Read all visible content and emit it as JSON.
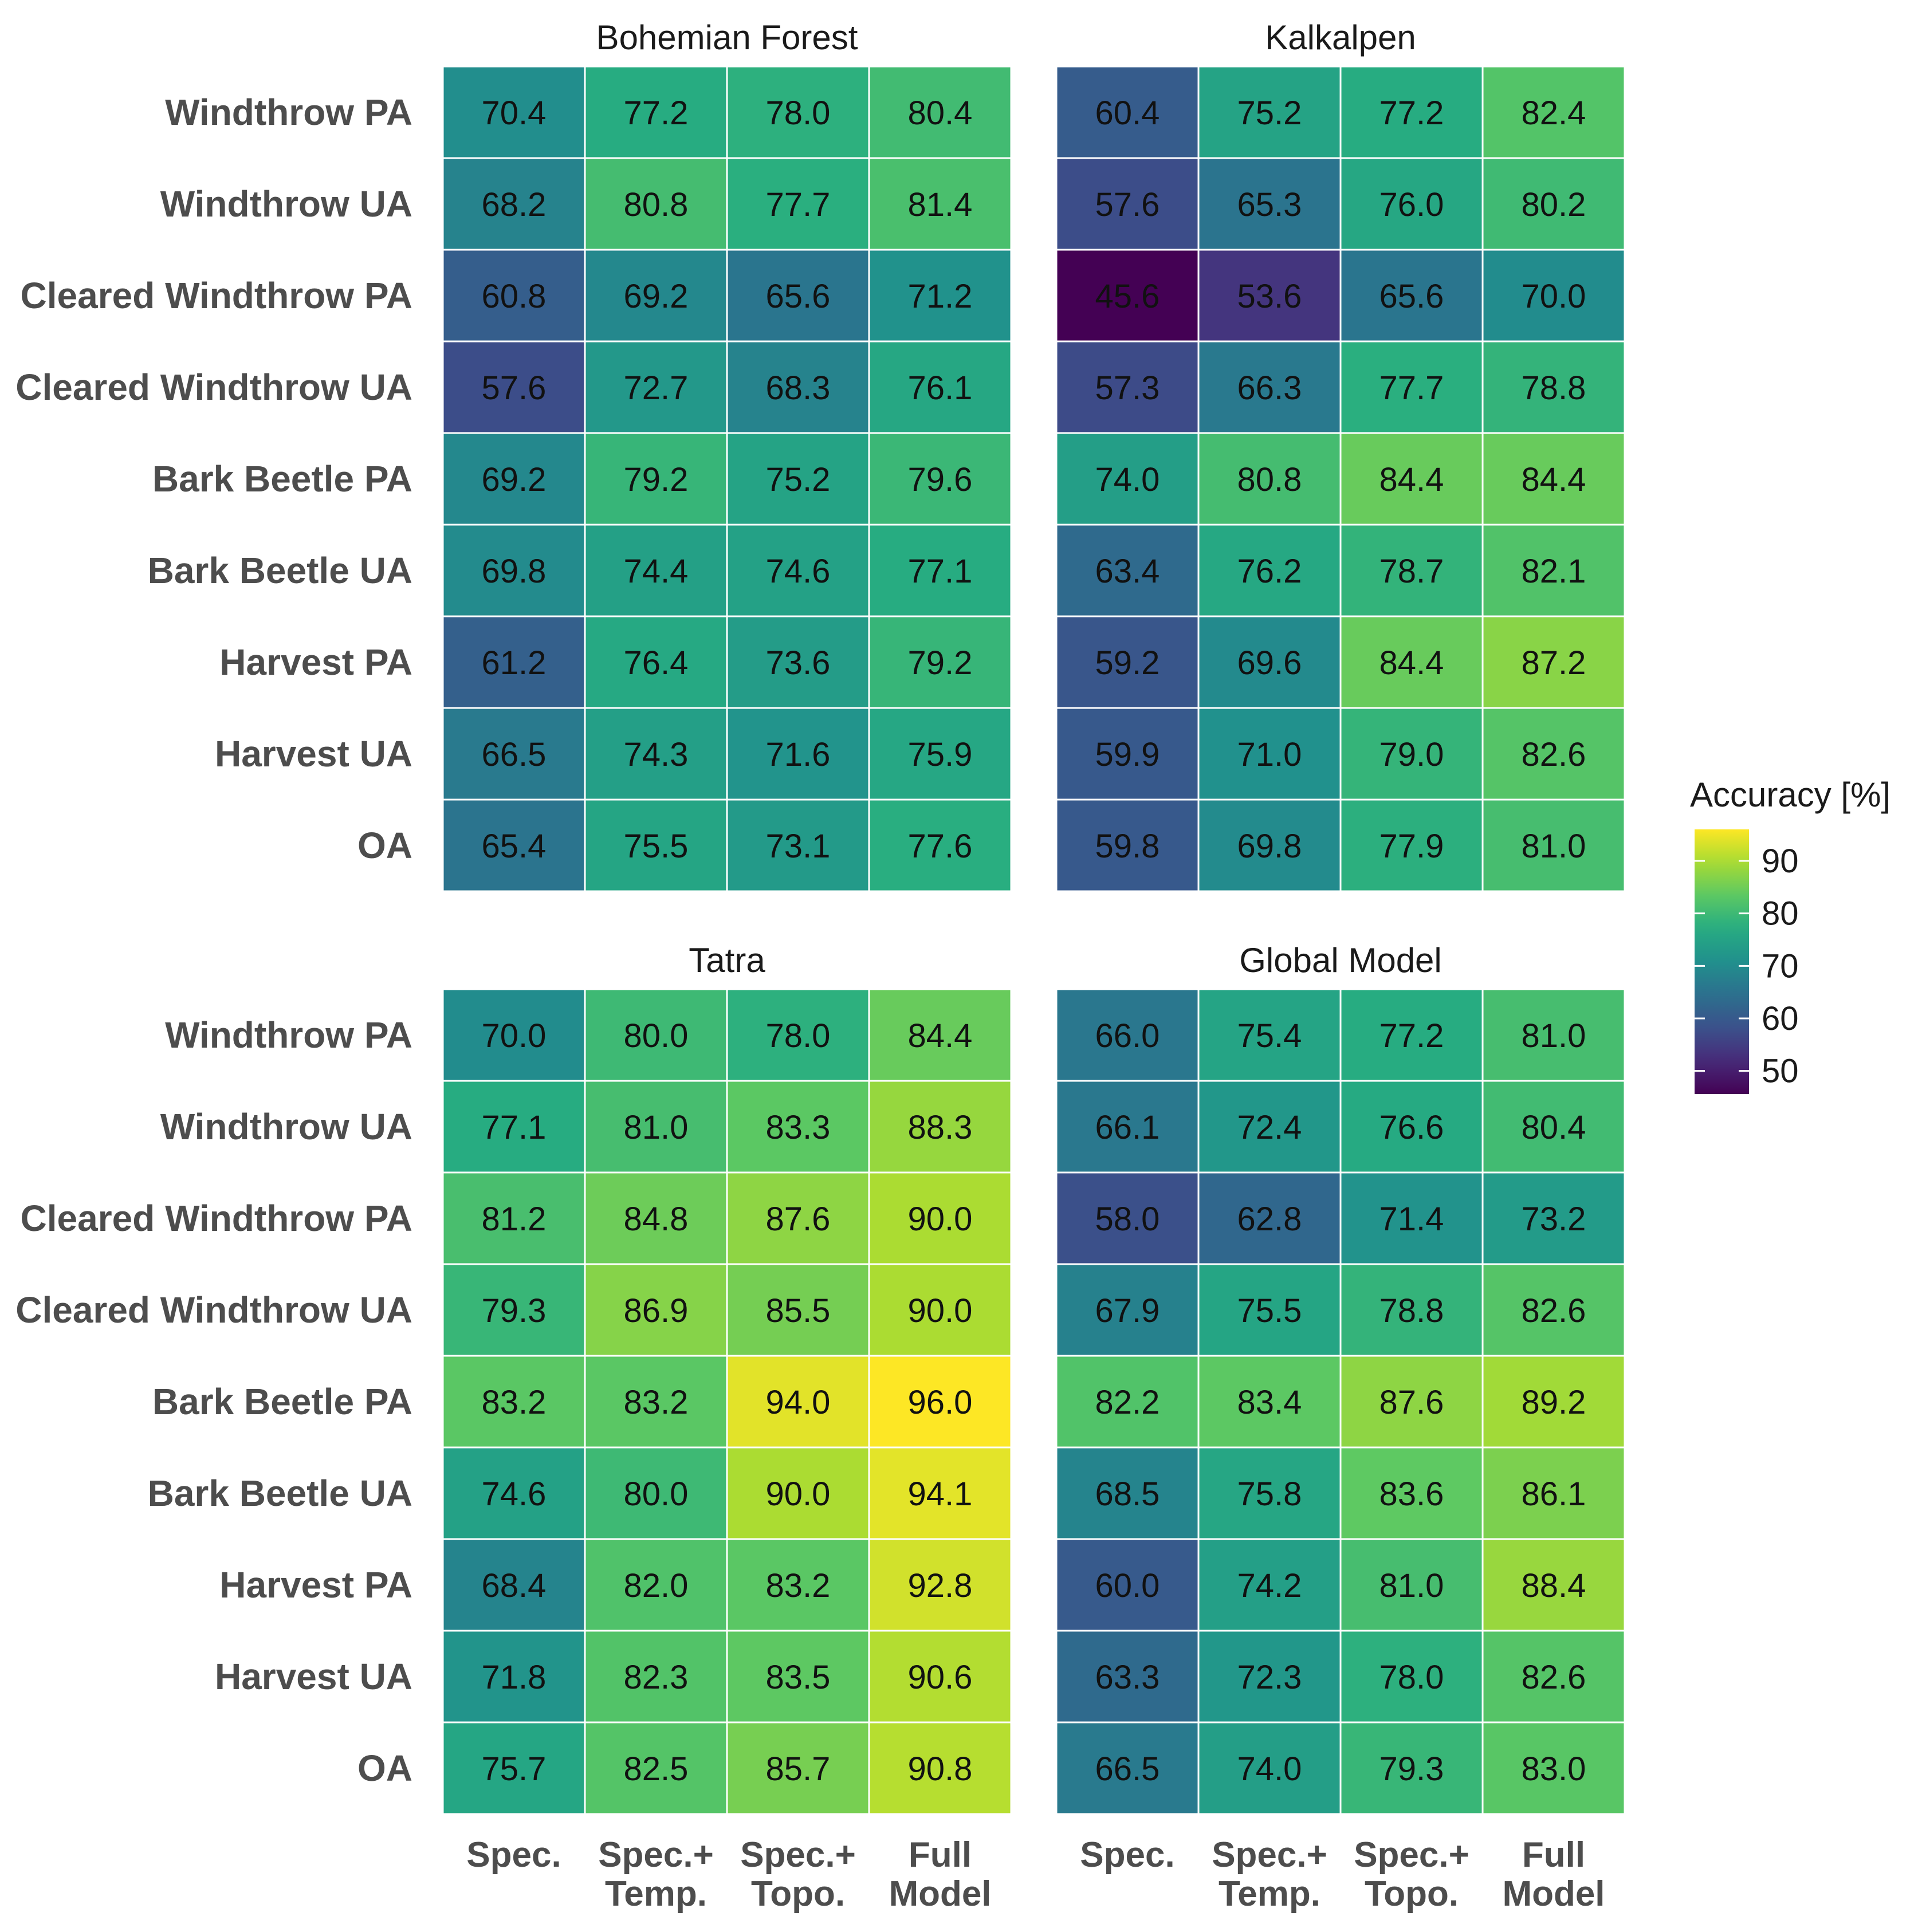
{
  "chart_data": {
    "type": "heatmap",
    "rows": [
      "Windthrow PA",
      "Windthrow UA",
      "Cleared Windthrow PA",
      "Cleared Windthrow UA",
      "Bark Beetle PA",
      "Bark Beetle UA",
      "Harvest PA",
      "Harvest UA",
      "OA"
    ],
    "columns": [
      [
        "Spec."
      ],
      [
        "Spec.+",
        "Temp."
      ],
      [
        "Spec.+",
        "Topo."
      ],
      [
        "Full",
        "Model"
      ]
    ],
    "panels": [
      {
        "title": "Bohemian Forest",
        "values": [
          [
            70.4,
            77.2,
            78.0,
            80.4
          ],
          [
            68.2,
            80.8,
            77.7,
            81.4
          ],
          [
            60.8,
            69.2,
            65.6,
            71.2
          ],
          [
            57.6,
            72.7,
            68.3,
            76.1
          ],
          [
            69.2,
            79.2,
            75.2,
            79.6
          ],
          [
            69.8,
            74.4,
            74.6,
            77.1
          ],
          [
            61.2,
            76.4,
            73.6,
            79.2
          ],
          [
            66.5,
            74.3,
            71.6,
            75.9
          ],
          [
            65.4,
            75.5,
            73.1,
            77.6
          ]
        ]
      },
      {
        "title": "Kalkalpen",
        "values": [
          [
            60.4,
            75.2,
            77.2,
            82.4
          ],
          [
            57.6,
            65.3,
            76.0,
            80.2
          ],
          [
            45.6,
            53.6,
            65.6,
            70.0
          ],
          [
            57.3,
            66.3,
            77.7,
            78.8
          ],
          [
            74.0,
            80.8,
            84.4,
            84.4
          ],
          [
            63.4,
            76.2,
            78.7,
            82.1
          ],
          [
            59.2,
            69.6,
            84.4,
            87.2
          ],
          [
            59.9,
            71.0,
            79.0,
            82.6
          ],
          [
            59.8,
            69.8,
            77.9,
            81.0
          ]
        ]
      },
      {
        "title": "Tatra",
        "values": [
          [
            70.0,
            80.0,
            78.0,
            84.4
          ],
          [
            77.1,
            81.0,
            83.3,
            88.3
          ],
          [
            81.2,
            84.8,
            87.6,
            90.0
          ],
          [
            79.3,
            86.9,
            85.5,
            90.0
          ],
          [
            83.2,
            83.2,
            94.0,
            96.0
          ],
          [
            74.6,
            80.0,
            90.0,
            94.1
          ],
          [
            68.4,
            82.0,
            83.2,
            92.8
          ],
          [
            71.8,
            82.3,
            83.5,
            90.6
          ],
          [
            75.7,
            82.5,
            85.7,
            90.8
          ]
        ]
      },
      {
        "title": "Global Model",
        "values": [
          [
            66.0,
            75.4,
            77.2,
            81.0
          ],
          [
            66.1,
            72.4,
            76.6,
            80.4
          ],
          [
            58.0,
            62.8,
            71.4,
            73.2
          ],
          [
            67.9,
            75.5,
            78.8,
            82.6
          ],
          [
            82.2,
            83.4,
            87.6,
            89.2
          ],
          [
            68.5,
            75.8,
            83.6,
            86.1
          ],
          [
            60.0,
            74.2,
            81.0,
            88.4
          ],
          [
            63.3,
            72.3,
            78.0,
            82.6
          ],
          [
            66.5,
            74.0,
            79.3,
            83.0
          ]
        ]
      }
    ],
    "legend": {
      "title": "Accuracy [%]",
      "ticks": [
        "90",
        "80",
        "70",
        "60",
        "50"
      ],
      "tick_values": [
        90,
        80,
        70,
        60,
        50
      ],
      "range": [
        45.6,
        96.0
      ],
      "placement": "right",
      "colormap": "viridis"
    },
    "value_format": "one decimal"
  }
}
